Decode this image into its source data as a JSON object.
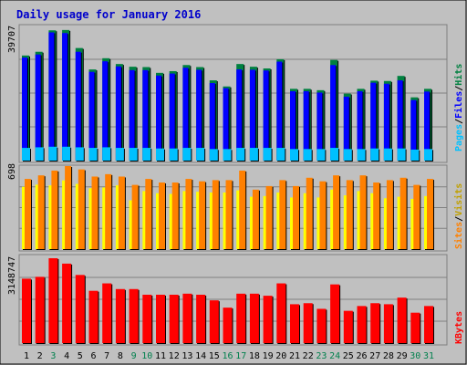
{
  "title": "Daily usage for January 2016",
  "chart_data": {
    "type": "bar",
    "title": "Daily usage for January 2016",
    "categories": [
      "1",
      "2",
      "3",
      "4",
      "5",
      "6",
      "7",
      "8",
      "9",
      "10",
      "11",
      "12",
      "13",
      "14",
      "15",
      "16",
      "17",
      "18",
      "19",
      "20",
      "21",
      "22",
      "23",
      "24",
      "25",
      "26",
      "27",
      "28",
      "29",
      "30",
      "31"
    ],
    "weekend_days": [
      3,
      9,
      10,
      16,
      17,
      23,
      24,
      30,
      31
    ],
    "colors": {
      "hits": "#008040",
      "files": "#0000ff",
      "pages": "#00c0ff",
      "visits": "#ffff00",
      "sites": "#ff8000",
      "kbytes": "#ff0000",
      "weekday_tick": "#000000",
      "weekend_tick": "#00804d",
      "title": "#0000cc"
    },
    "panels": [
      {
        "name": "hits-files-pages",
        "ymax_label": "39707",
        "ylim": [
          0,
          39707
        ],
        "legend_labels": [
          "Pages",
          "Files",
          "Hits"
        ],
        "legend_colors": [
          "#00c0ff",
          "#0000ff",
          "#008040"
        ],
        "series": [
          {
            "name": "Hits",
            "values": [
              30900,
              32000,
              38300,
              38400,
              33100,
              26800,
              30100,
              28400,
              27600,
              27500,
              25800,
              26300,
              28100,
              27500,
              23600,
              21800,
              28400,
              27600,
              27100,
              29800,
              21100,
              21100,
              20700,
              29600,
              19700,
              21100,
              23500,
              23400,
              24900,
              18600,
              21100
            ]
          },
          {
            "name": "Files",
            "values": [
              30300,
              31200,
              37700,
              37500,
              32000,
              26100,
              29200,
              27700,
              26600,
              26600,
              25000,
              25600,
              27300,
              26700,
              22800,
              21300,
              26800,
              26700,
              26500,
              29100,
              20400,
              20400,
              20000,
              28100,
              18800,
              20400,
              22900,
              22600,
              23600,
              17800,
              20300
            ]
          },
          {
            "name": "Pages",
            "values": [
              1100,
              1150,
              1200,
              1200,
              1150,
              1100,
              1150,
              1100,
              1100,
              1100,
              1050,
              1050,
              1100,
              1100,
              1000,
              1000,
              1100,
              1100,
              1100,
              1100,
              1000,
              1000,
              1000,
              1100,
              1000,
              1000,
              1050,
              1050,
              1050,
              950,
              1000
            ]
          }
        ]
      },
      {
        "name": "sites-visits",
        "ymax_label": "698",
        "ylim": [
          0,
          698
        ],
        "legend_labels": [
          "Sites",
          "Visits"
        ],
        "legend_colors": [
          "#ff8000",
          "#ffff00"
        ],
        "series": [
          {
            "name": "Visits",
            "values": [
              524,
              542,
              536,
              578,
              548,
              512,
              518,
              536,
              410,
              488,
              470,
              464,
              488,
              482,
              476,
              476,
              494,
              440,
              446,
              476,
              434,
              470,
              434,
              500,
              452,
              488,
              470,
              428,
              440,
              422,
              446
            ]
          },
          {
            "name": "Sites",
            "values": [
              590,
              620,
              660,
              698,
              670,
              610,
              630,
              610,
              540,
              590,
              560,
              560,
              590,
              570,
              580,
              580,
              660,
              500,
              530,
              580,
              530,
              600,
              570,
              620,
              580,
              620,
              560,
              580,
              600,
              540,
              590
            ]
          }
        ]
      },
      {
        "name": "kbytes",
        "ymax_label": "3148747",
        "ylim": [
          0,
          3148747
        ],
        "legend_labels": [
          "KBytes"
        ],
        "legend_colors": [
          "#ff0000"
        ],
        "series": [
          {
            "name": "KBytes",
            "values": [
              2390000,
              2459000,
              3149000,
              2949000,
              2529000,
              1940000,
              2216000,
              2005000,
              2005000,
              1795000,
              1795000,
              1795000,
              1834000,
              1795000,
              1586000,
              1316000,
              1834000,
              1834000,
              1757000,
              2216000,
              1442000,
              1481000,
              1271000,
              2178000,
              1197000,
              1376000,
              1481000,
              1442000,
              1688000,
              1128000,
              1376000
            ]
          }
        ]
      }
    ]
  }
}
